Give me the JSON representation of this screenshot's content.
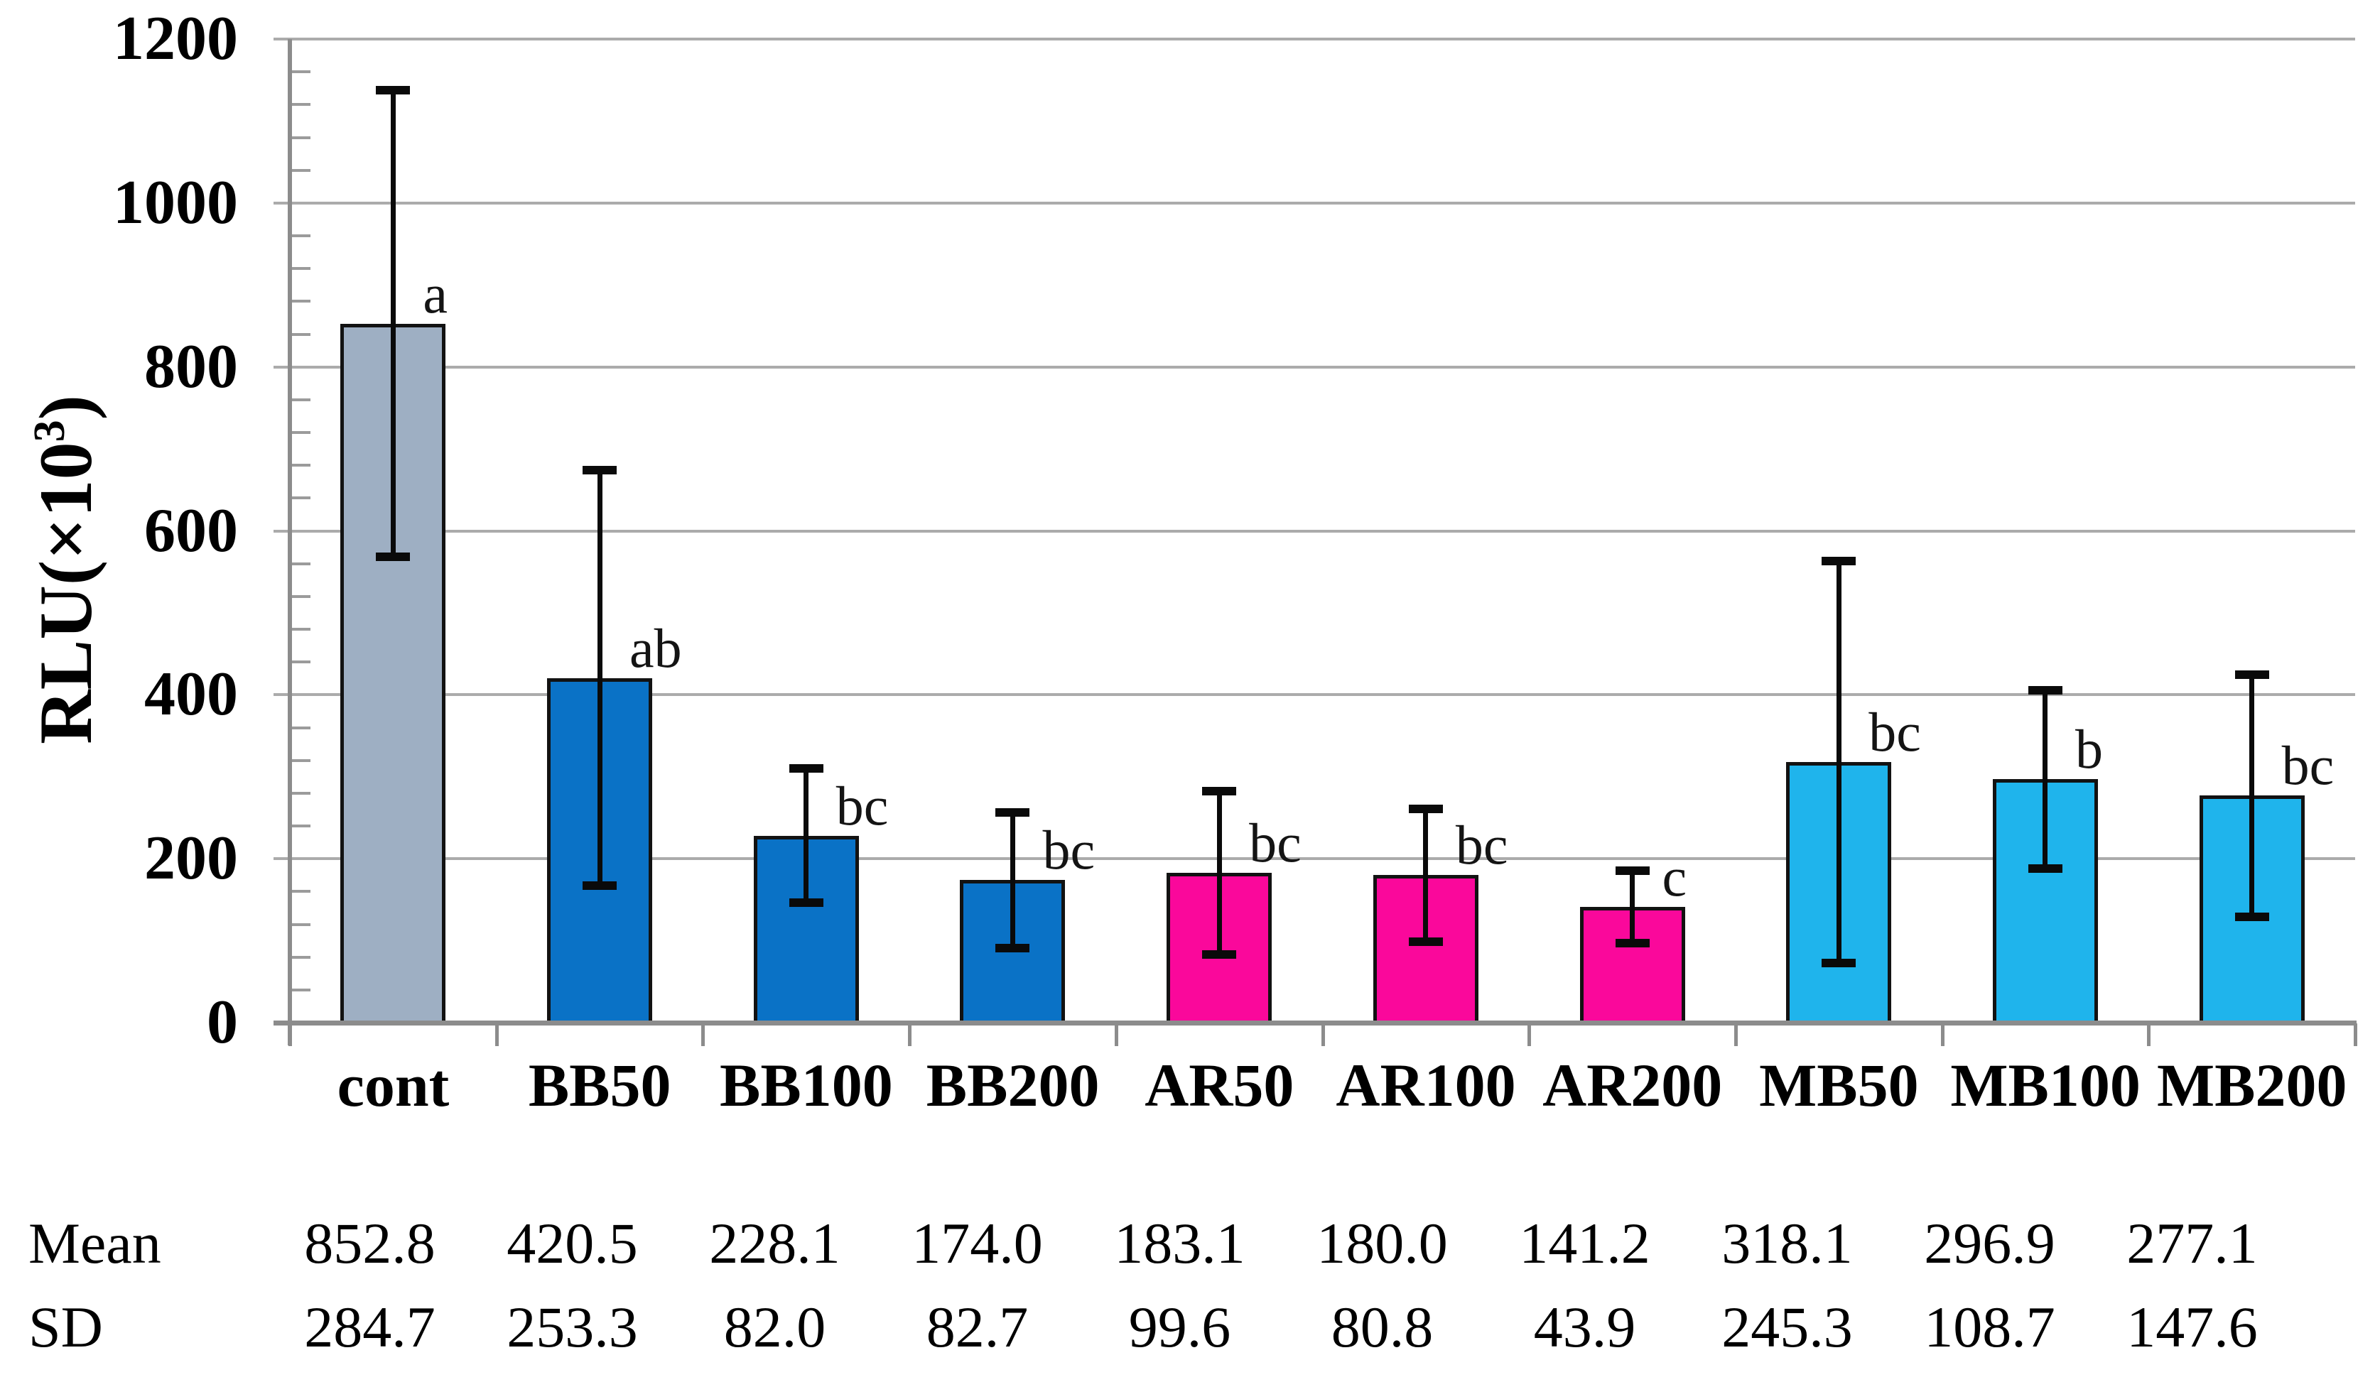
{
  "figure": {
    "y_axis": {
      "title_prefix": "RLU(×10",
      "title_sup": "3",
      "title_suffix": ")"
    }
  },
  "chart_data": {
    "type": "bar",
    "title": "",
    "xlabel": "",
    "ylabel": "RLU(×10³)",
    "categories": [
      "cont",
      "BB50",
      "BB100",
      "BB200",
      "AR50",
      "AR100",
      "AR200",
      "MB50",
      "MB100",
      "MB200"
    ],
    "values": [
      852.8,
      420.5,
      228.1,
      174.0,
      183.1,
      180.0,
      141.2,
      318.1,
      296.9,
      277.1
    ],
    "errors_sd": [
      284.7,
      253.3,
      82.0,
      82.7,
      99.6,
      80.8,
      43.9,
      245.3,
      108.7,
      147.6
    ],
    "sig_letters": [
      "a",
      "ab",
      "bc",
      "bc",
      "bc",
      "bc",
      "c",
      "bc",
      "b",
      "bc"
    ],
    "bar_colors": [
      "#9EAFC3",
      "#0A72C6",
      "#0A72C6",
      "#0A72C6",
      "#FA089B",
      "#FA089B",
      "#FA089B",
      "#1FB4EC",
      "#1FB4EC",
      "#1FB4EC"
    ],
    "group_colors": {
      "cont": "#9EAFC3",
      "BB": "#0A72C6",
      "AR": "#FA089B",
      "MB": "#1FB4EC"
    },
    "ylim": [
      0,
      1200
    ],
    "yticks": [
      0,
      200,
      400,
      600,
      800,
      1000,
      1200
    ],
    "ytick_step": 200,
    "yminor_step": 40,
    "grid": "horizontal-major",
    "legend_position": "none",
    "error_bar_color": "#0a0a0a",
    "bar_border_color": "#121212",
    "grid_color": "#ABABAB",
    "axis_color": "#8C8C8C"
  },
  "table": {
    "row_labels": [
      "Mean",
      "SD"
    ],
    "mean_values": [
      "852.8",
      "420.5",
      "228.1",
      "174.0",
      "183.1",
      "180.0",
      "141.2",
      "318.1",
      "296.9",
      "277.1"
    ],
    "sd_values": [
      "284.7",
      "253.3",
      "82.0",
      "82.7",
      "99.6",
      "80.8",
      "43.9",
      "245.3",
      "108.7",
      "147.6"
    ]
  }
}
